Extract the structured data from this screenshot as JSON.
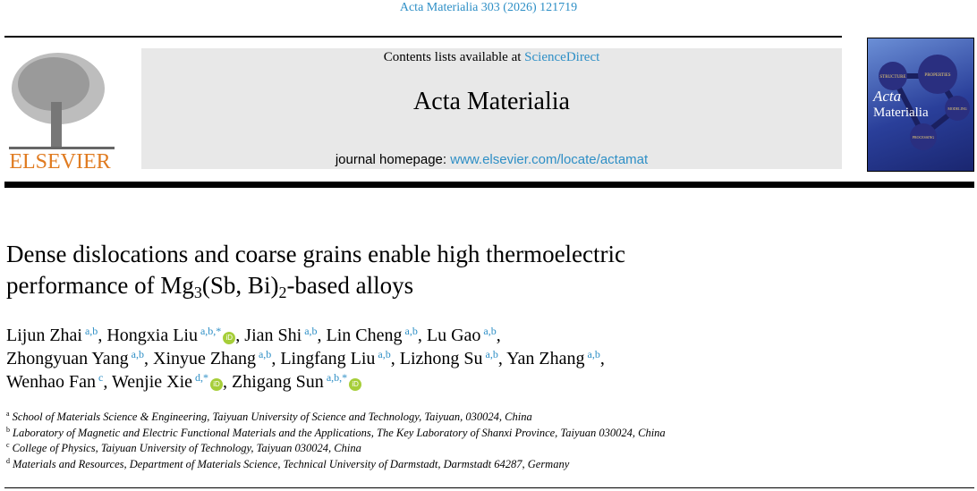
{
  "journal_ref": "Acta Materialia 303 (2026) 121719",
  "publisher_logo": {
    "text": "ELSEVIER",
    "color": "#e07b20"
  },
  "banner": {
    "contents_prefix": "Contents lists available at ",
    "contents_link": "ScienceDirect",
    "journal_title": "Acta Materialia",
    "homepage_prefix": "journal homepage: ",
    "homepage_link": "www.elsevier.com/locate/actamat"
  },
  "cover": {
    "title_line1": "Acta",
    "title_line2": "Materialia",
    "nodes": [
      "STRUCTURE",
      "PROPERTIES",
      "MODELING",
      "PROCESSING"
    ]
  },
  "title": {
    "line1": "Dense dislocations and coarse grains enable high thermoelectric",
    "line2_a": "performance of Mg",
    "line2_sub1": "3",
    "line2_b": "(Sb, Bi)",
    "line2_sub2": "2",
    "line2_c": "-based alloys"
  },
  "authors": [
    {
      "name": "Lijun Zhai",
      "sup": "a,b",
      "sep": ", "
    },
    {
      "name": "Hongxia Liu",
      "sup": "a,b,*",
      "orcid": true,
      "sep": ", "
    },
    {
      "name": "Jian Shi",
      "sup": "a,b",
      "sep": ", "
    },
    {
      "name": "Lin Cheng",
      "sup": "a,b",
      "sep": ", "
    },
    {
      "name": "Lu Gao",
      "sup": "a,b",
      "sep": ","
    },
    {
      "name": "Zhongyuan Yang",
      "sup": "a,b",
      "sep": ", "
    },
    {
      "name": "Xinyue Zhang",
      "sup": "a,b",
      "sep": ", "
    },
    {
      "name": "Lingfang Liu",
      "sup": "a,b",
      "sep": ", "
    },
    {
      "name": "Lizhong Su",
      "sup": "a,b",
      "sep": ", "
    },
    {
      "name": "Yan Zhang",
      "sup": "a,b",
      "sep": ","
    },
    {
      "name": "Wenhao Fan",
      "sup": "c",
      "sep": ", "
    },
    {
      "name": "Wenjie Xie",
      "sup": "d,*",
      "orcid": true,
      "sep": ", "
    },
    {
      "name": "Zhigang Sun",
      "sup": "a,b,*",
      "orcid": true,
      "sep": ""
    }
  ],
  "orcid_label": "iD",
  "affiliations": [
    {
      "key": "a",
      "text": "School of Materials Science & Engineering, Taiyuan University of Science and Technology, Taiyuan, 030024, China"
    },
    {
      "key": "b",
      "text": "Laboratory of Magnetic and Electric Functional Materials and the Applications, The Key Laboratory of Shanxi Province, Taiyuan 030024, China"
    },
    {
      "key": "c",
      "text": "College of Physics, Taiyuan University of Technology, Taiyuan 030024, China"
    },
    {
      "key": "d",
      "text": "Materials and Resources, Department of Materials Science, Technical University of Darmstadt, Darmstadt 64287, Germany"
    }
  ]
}
